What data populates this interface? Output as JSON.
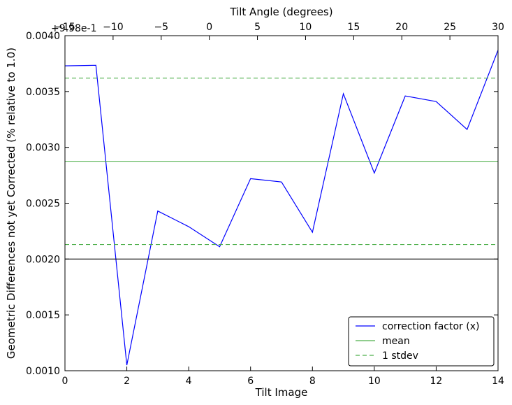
{
  "chart_data": {
    "type": "line",
    "xlabel": "Tilt Image",
    "ylabel": "Geometric Differences not yet Corrected (% relative to 1.0)",
    "top_xlabel": "Tilt Angle (degrees)",
    "offset_label": "+9.98e-1",
    "xlim": [
      0,
      14
    ],
    "ylim": [
      0.001,
      0.004
    ],
    "top_xlim": [
      -15,
      30
    ],
    "x_ticks": [
      0,
      2,
      4,
      6,
      8,
      10,
      12,
      14
    ],
    "x_tick_labels": [
      "0",
      "2",
      "4",
      "6",
      "8",
      "10",
      "12",
      "14"
    ],
    "y_ticks": [
      0.001,
      0.0015,
      0.002,
      0.0025,
      0.003,
      0.0035,
      0.004
    ],
    "y_tick_labels": [
      "0.0010",
      "0.0015",
      "0.0020",
      "0.0025",
      "0.0030",
      "0.0035",
      "0.0040"
    ],
    "top_ticks": [
      -15,
      -10,
      -5,
      0,
      5,
      10,
      15,
      20,
      25,
      30
    ],
    "top_tick_labels": [
      "−15",
      "−10",
      "−5",
      "0",
      "5",
      "10",
      "15",
      "20",
      "25",
      "30"
    ],
    "series": [
      {
        "name": "correction factor (x)",
        "color": "#0000ff",
        "style": "solid",
        "x": [
          0,
          1,
          2,
          3,
          4,
          5,
          6,
          7,
          8,
          9,
          10,
          11,
          12,
          13,
          14
        ],
        "y": [
          0.00373,
          0.003735,
          0.00105,
          0.00243,
          0.00229,
          0.00211,
          0.00272,
          0.00269,
          0.00224,
          0.00348,
          0.00277,
          0.00346,
          0.00341,
          0.00316,
          0.00387
        ]
      },
      {
        "name": "mean",
        "color": "#4daf4a",
        "style": "solid",
        "y_const": 0.002875
      },
      {
        "name": "1 stdev",
        "color": "#4daf4a",
        "style": "dashed",
        "y_const": [
          0.00213,
          0.00362
        ]
      },
      {
        "name": "",
        "color": "#000000",
        "style": "solid",
        "y_const": 0.002
      }
    ],
    "legend": {
      "placement": "lower-right",
      "entries": [
        "correction factor (x)",
        "mean",
        "1 stdev"
      ]
    },
    "grid": false
  }
}
